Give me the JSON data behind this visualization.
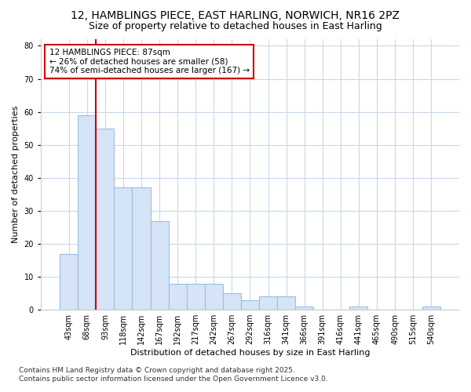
{
  "title1": "12, HAMBLINGS PIECE, EAST HARLING, NORWICH, NR16 2PZ",
  "title2": "Size of property relative to detached houses in East Harling",
  "xlabel": "Distribution of detached houses by size in East Harling",
  "ylabel": "Number of detached properties",
  "bar_labels": [
    "43sqm",
    "68sqm",
    "93sqm",
    "118sqm",
    "142sqm",
    "167sqm",
    "192sqm",
    "217sqm",
    "242sqm",
    "267sqm",
    "292sqm",
    "316sqm",
    "341sqm",
    "366sqm",
    "391sqm",
    "416sqm",
    "441sqm",
    "465sqm",
    "490sqm",
    "515sqm",
    "540sqm"
  ],
  "bar_values": [
    17,
    59,
    55,
    37,
    37,
    27,
    8,
    8,
    8,
    5,
    3,
    4,
    4,
    1,
    0,
    0,
    1,
    0,
    0,
    0,
    1
  ],
  "bar_color": "#d6e4f7",
  "bar_edgecolor": "#9bbfdf",
  "bar_linewidth": 0.8,
  "redline_after_bar": 1,
  "annotation_title": "12 HAMBLINGS PIECE: 87sqm",
  "annotation_line2": "← 26% of detached houses are smaller (58)",
  "annotation_line3": "74% of semi-detached houses are larger (167) →",
  "annotation_box_color": "#ffffff",
  "annotation_box_edgecolor": "#cc0000",
  "ylim": [
    0,
    82
  ],
  "yticks": [
    0,
    10,
    20,
    30,
    40,
    50,
    60,
    70,
    80
  ],
  "background_color": "#ffffff",
  "plot_bg_color": "#ffffff",
  "grid_color": "#c8d8e8",
  "footer1": "Contains HM Land Registry data © Crown copyright and database right 2025.",
  "footer2": "Contains public sector information licensed under the Open Government Licence v3.0.",
  "title_fontsize": 10,
  "subtitle_fontsize": 9,
  "axis_label_fontsize": 8,
  "tick_fontsize": 7,
  "annotation_fontsize": 7.5,
  "footer_fontsize": 6.5
}
